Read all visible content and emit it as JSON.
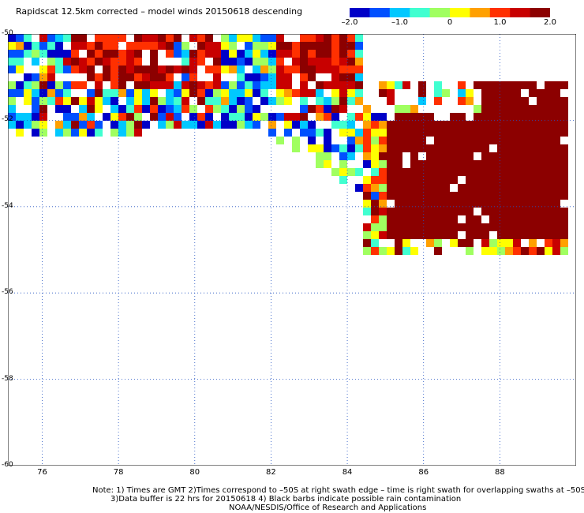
{
  "title": "Rapidscat 12.5km corrected – model winds 20150618 descending",
  "colorbar": {
    "ticks": [
      {
        "value": -2.0,
        "label": "–2.0"
      },
      {
        "value": -1.0,
        "label": "–1.0"
      },
      {
        "value": 0,
        "label": "0"
      },
      {
        "value": 1.0,
        "label": "1.0"
      },
      {
        "value": 2.0,
        "label": "2.0"
      }
    ],
    "colors": [
      "#0000c8",
      "#0050ff",
      "#00c8ff",
      "#40ffd0",
      "#a0ff60",
      "#ffff00",
      "#ffa000",
      "#ff3000",
      "#c80000",
      "#8c0000"
    ]
  },
  "chart_data": {
    "type": "heatmap",
    "lon_ticks": [
      76,
      78,
      80,
      82,
      84,
      86,
      88
    ],
    "lat_ticks": [
      -50,
      -52,
      -54,
      -56,
      -58,
      -60
    ],
    "lon_range": [
      75.1,
      90
    ],
    "lat_range": [
      -60,
      -50
    ],
    "regions": [
      {
        "name": "",
        "approx_value": "mixed",
        "lon": [
          75.1,
          84
        ],
        "lat": [
          -52.5,
          -50
        ]
      },
      {
        "name": "",
        "approx_value": "mixed",
        "lon": [
          81,
          85
        ],
        "lat": [
          -54,
          -52
        ]
      },
      {
        "name": "",
        "approx_value": 2.0,
        "lon": [
          84.5,
          89.7
        ],
        "lat": [
          -55,
          -51.5
        ]
      }
    ]
  },
  "notes": {
    "line1": "Note: 1) Times are GMT 2)Times correspond to –50S at right swath edge – time is right swath for overlapping swaths at –50S",
    "line2": "3)Data buffer is 22 hrs for 20150618 4) Black barbs indicate possible rain contamination",
    "line3": "NOAA/NESDIS/Office of Research and Applications"
  }
}
